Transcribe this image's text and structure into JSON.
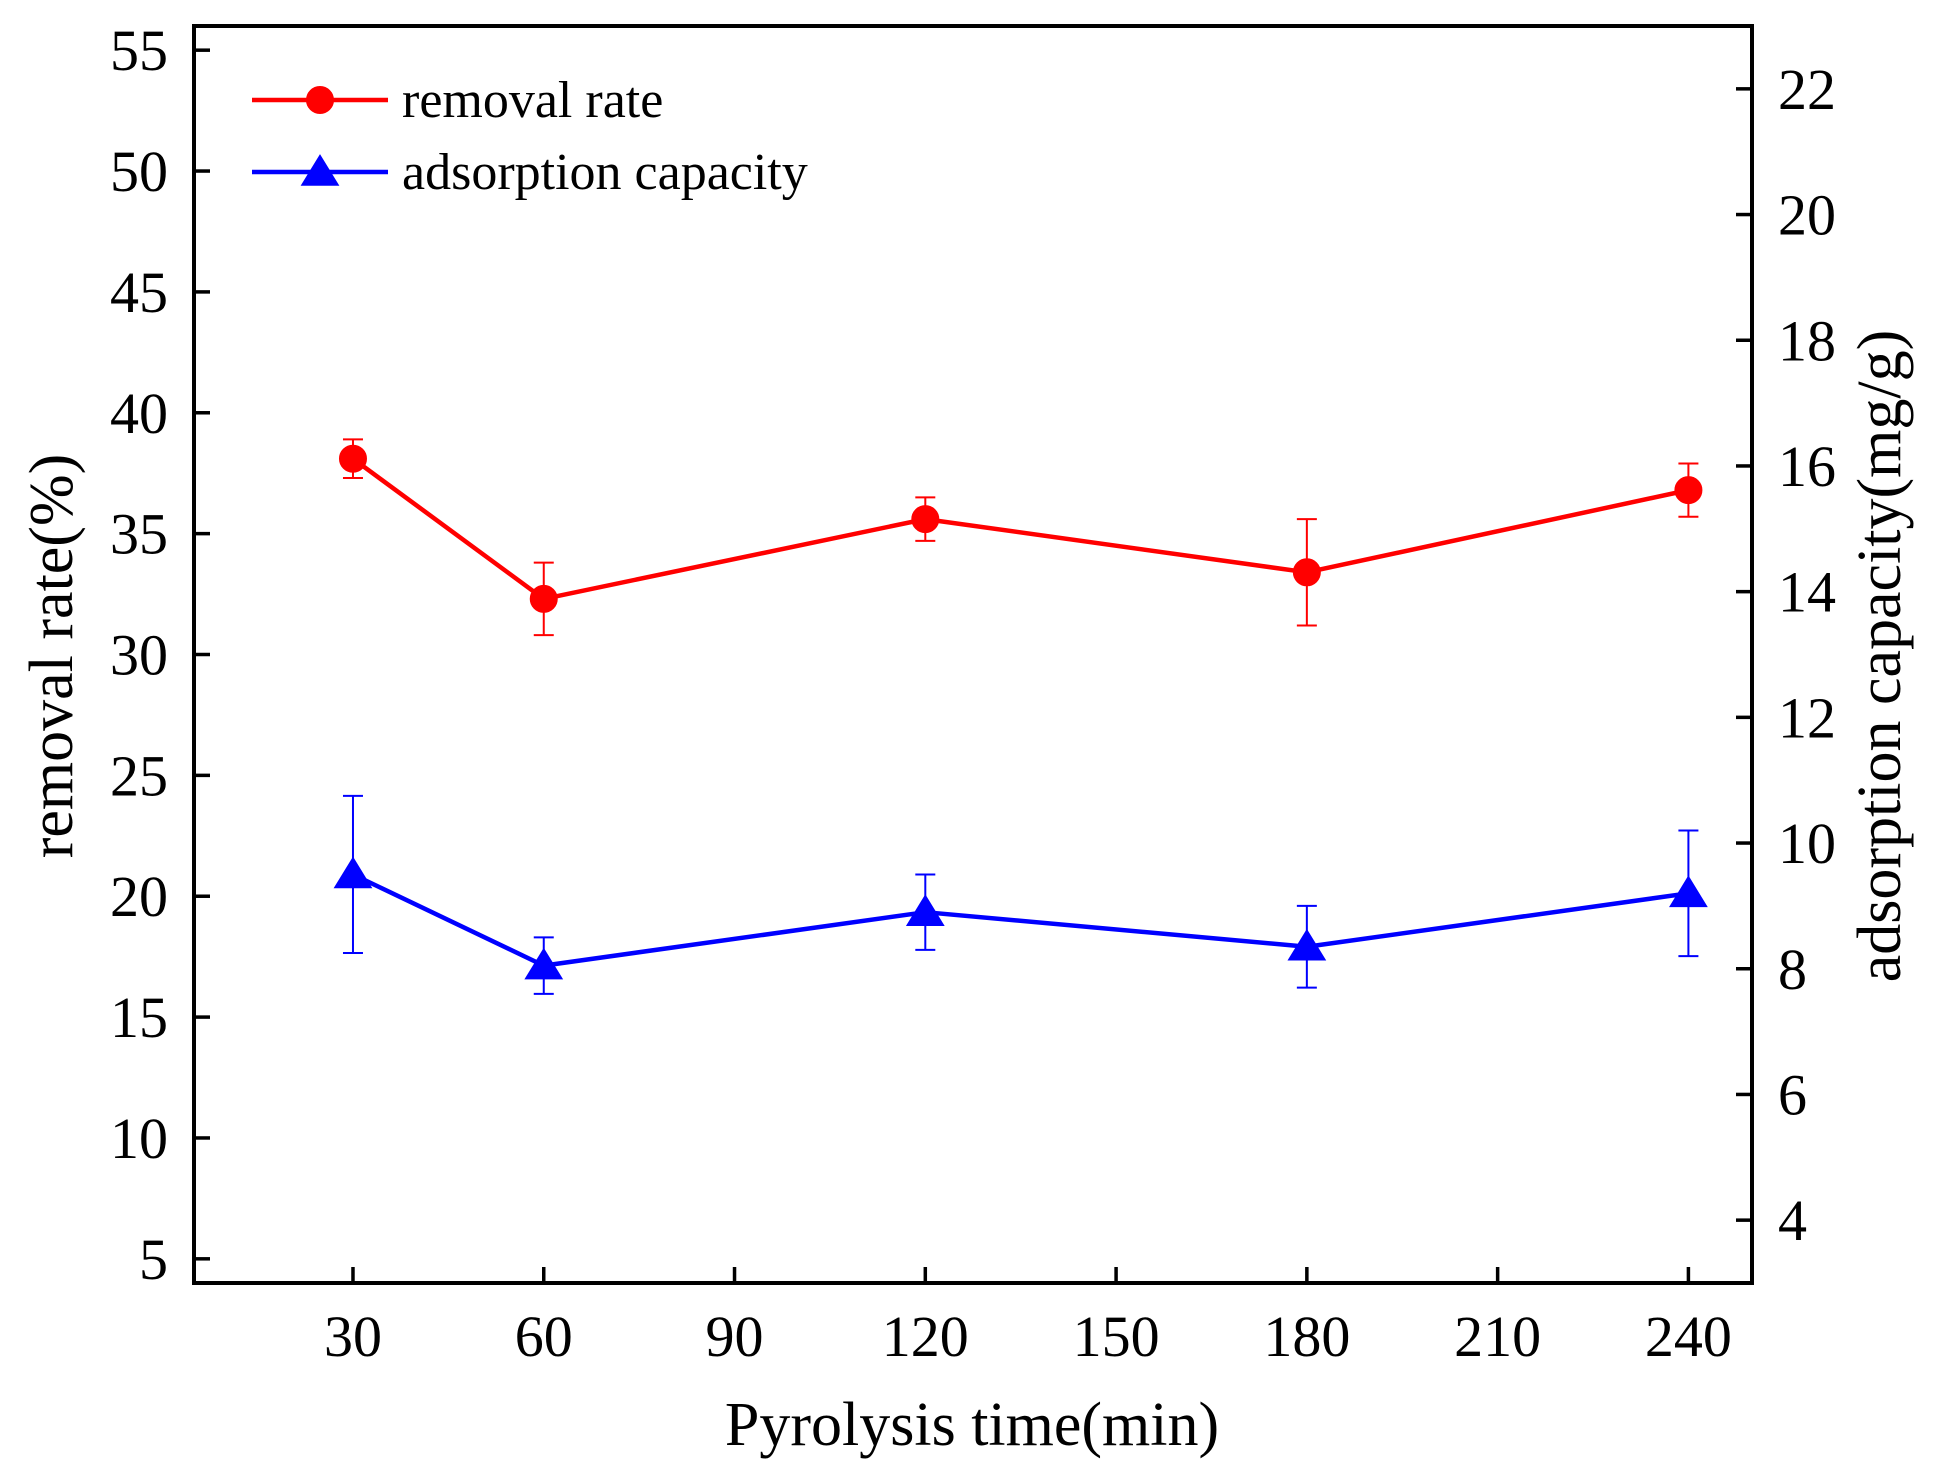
{
  "chart_data": {
    "type": "line",
    "title": "",
    "xlabel": "Pyrolysis time(min)",
    "ylabel": "removal rate(%)",
    "y2label": "adsorption capacity(mg/g)",
    "xlim": [
      5,
      250
    ],
    "ylim": [
      4,
      56
    ],
    "y2lim": [
      3,
      23
    ],
    "xticks": [
      30,
      60,
      90,
      120,
      150,
      180,
      210,
      240
    ],
    "yticks": [
      5,
      10,
      15,
      20,
      25,
      30,
      35,
      40,
      45,
      50,
      55
    ],
    "y2ticks": [
      4,
      6,
      8,
      10,
      12,
      14,
      16,
      18,
      20,
      22
    ],
    "grid": false,
    "legend_position": "top-left",
    "series": [
      {
        "name": "removal rate",
        "axis": "left",
        "color": "#ff0000",
        "marker": "circle",
        "x": [
          30,
          60,
          120,
          180,
          240
        ],
        "values": [
          38.1,
          32.3,
          35.6,
          33.4,
          36.8
        ],
        "errors": [
          0.8,
          1.5,
          0.9,
          2.2,
          1.1
        ]
      },
      {
        "name": "adsorption capacity",
        "axis": "right",
        "color": "#0000ff",
        "marker": "triangle",
        "x": [
          30,
          60,
          120,
          180,
          240
        ],
        "values": [
          9.5,
          8.05,
          8.9,
          8.35,
          9.2
        ],
        "errors": [
          1.25,
          0.45,
          0.6,
          0.65,
          1.0
        ]
      }
    ]
  }
}
